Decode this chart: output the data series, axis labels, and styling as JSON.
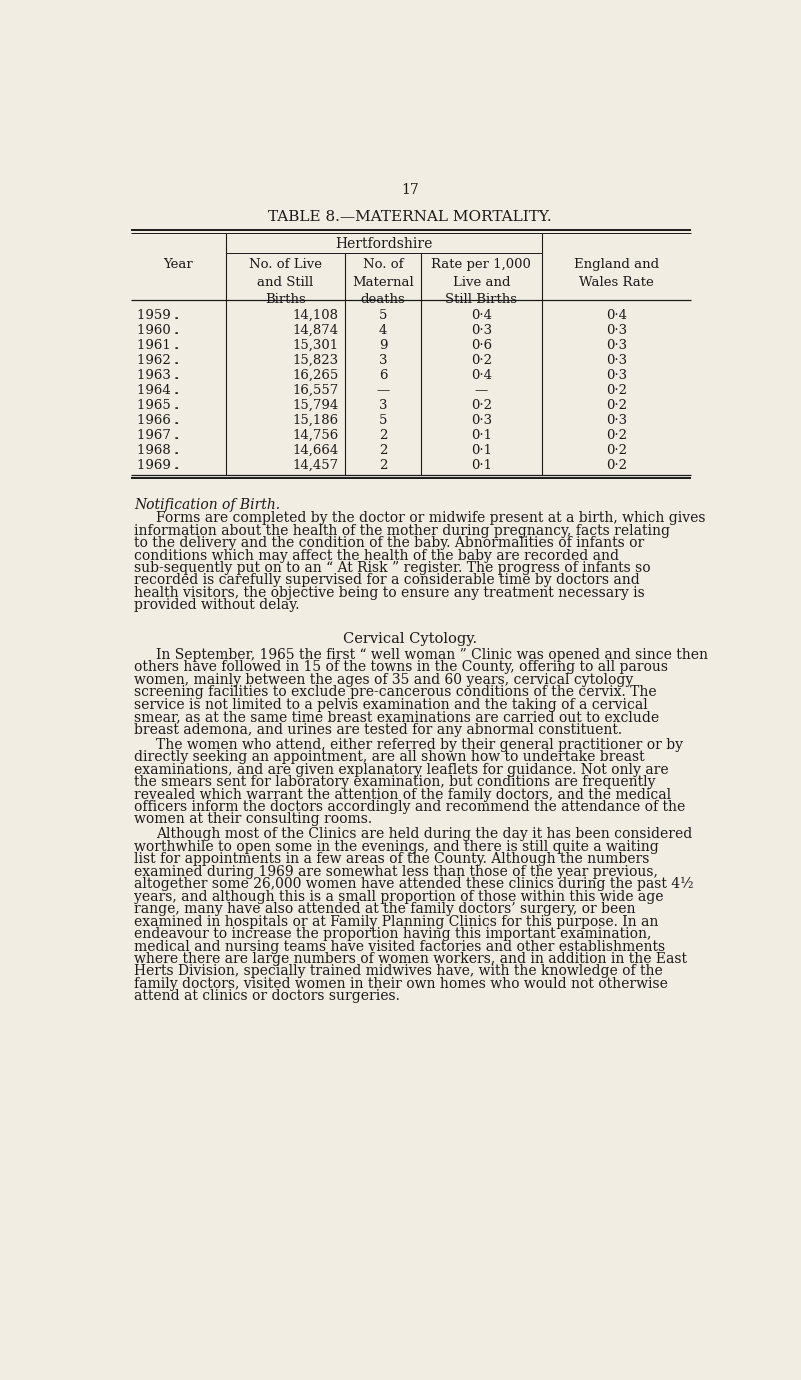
{
  "page_number": "17",
  "title_pre": "T",
  "title": "TABLE 8.—MATERNAL MORTALITY.",
  "background_color": "#f2ede3",
  "text_color": "#1a1a1a",
  "table": {
    "rows": [
      [
        "1959",
        "14,108",
        "5",
        "0·4",
        "0·4"
      ],
      [
        "1960",
        "14,874",
        "4",
        "0·3",
        "0·3"
      ],
      [
        "1961",
        "15,301",
        "9",
        "0·6",
        "0·3"
      ],
      [
        "1962",
        "15,823",
        "3",
        "0·2",
        "0·3"
      ],
      [
        "1963",
        "16,265",
        "6",
        "0·4",
        "0·3"
      ],
      [
        "1964",
        "16,557",
        "—",
        "—",
        "0·2"
      ],
      [
        "1965",
        "15,794",
        "3",
        "0·2",
        "0·2"
      ],
      [
        "1966",
        "15,186",
        "5",
        "0·3",
        "0·3"
      ],
      [
        "1967",
        "14,756",
        "2",
        "0·1",
        "0·2"
      ],
      [
        "1968",
        "14,664",
        "2",
        "0·1",
        "0·2"
      ],
      [
        "1969",
        "14,457",
        "2",
        "0·1",
        "0·2"
      ]
    ]
  },
  "notification_title": "Notification of Birth.",
  "notification_text": "Forms are completed by the doctor or midwife present at a birth, which gives information about the health of the mother during pregnancy, facts relating to the delivery and the condition of the baby.  Abnormalities of infants or conditions which may affect the health of the baby are recorded and sub-sequently put on to an “ At Risk ” register.  The progress of infants so recorded is carefully supervised for a considerable time by doctors and health visitors, the objective being to ensure any treatment necessary is provided without delay.",
  "cervical_title": "Cervical Cytology.",
  "cervical_text_1": "In September, 1965 the first “ well woman ” Clinic was opened and since then others have followed in 15 of the towns in the County, offering to all parous women, mainly between the ages of 35 and 60 years, cervical cytology screening facilities to exclude pre-cancerous conditions of the cervix.  The service is not limited to a pelvis examination and the taking of a cervical smear, as at the same time breast examinations are carried out to exclude breast ademona, and urines are tested for any abnormal constituent.",
  "cervical_text_2": "The women who attend, either referred by their general practitioner or by directly seeking an appointment, are all shown how to undertake breast examinations, and are given explanatory leaflets for guidance.  Not only are the smears sent for laboratory examination, but conditions are frequently revealed which warrant the attention of the family doctors, and the medical officers inform the doctors accordingly and recommend the attendance of the women at their consulting rooms.",
  "cervical_text_3": "Although most of the Clinics are held during the day it has been considered worthwhile to open some in the evenings, and there is still quite a waiting list for appointments in a few areas of the County.  Although the numbers examined during 1969 are somewhat less than those of the year previous, altogether some 26,000 women have attended these clinics during the past 4½ years, and although this is a small proportion of those within this wide age range, many have also attended at the family doctors’ surgery, or been examined in hospitals or at Family Planning Clinics for this purpose.  In an endeavour to increase the proportion having this important examination, medical and nursing teams have visited factories and other establishments where there are large numbers of women workers, and in addition in the East Herts Division, specially trained midwives have, with the knowledge of the family doctors, visited women in their own homes who would not otherwise attend at clinics or doctors surgeries."
}
